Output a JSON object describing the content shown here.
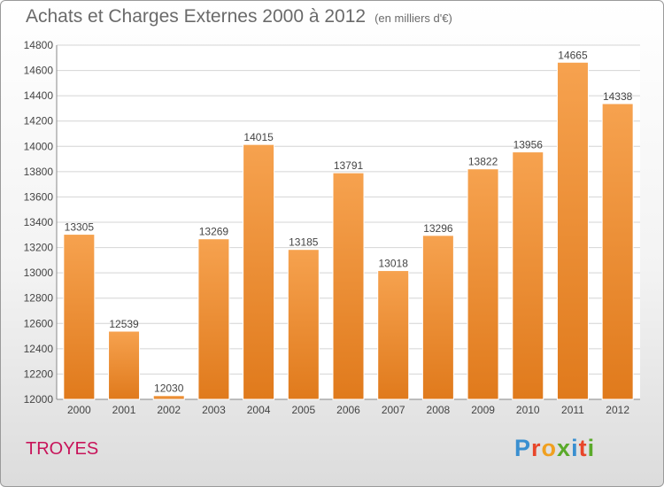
{
  "header": {
    "title": "Achats et Charges Externes 2000 à 2012",
    "subtitle": "(en milliers d'€)"
  },
  "footer": {
    "city": "TROYES",
    "logo_letters": [
      "P",
      "r",
      "o",
      "x",
      "i",
      "t",
      "i"
    ],
    "logo_colors": [
      "#3a8fd0",
      "#e8462a",
      "#f0a020",
      "#5aaa2a",
      "#3a8fd0",
      "#e8462a",
      "#5aaa2a"
    ]
  },
  "colors": {
    "bar_top": "#f6a24f",
    "bar_bottom": "#e07a1c",
    "grid": "#d4d4d4",
    "axis_text": "#444444"
  },
  "chart_data": {
    "type": "bar",
    "categories": [
      "2000",
      "2001",
      "2002",
      "2003",
      "2004",
      "2005",
      "2006",
      "2007",
      "2008",
      "2009",
      "2010",
      "2011",
      "2012"
    ],
    "values": [
      13305,
      12539,
      12030,
      13269,
      14015,
      13185,
      13791,
      13018,
      13296,
      13822,
      13956,
      14665,
      14338
    ],
    "ylim": [
      12000,
      14800
    ],
    "yticks": [
      12000,
      12200,
      12400,
      12600,
      12800,
      13000,
      13200,
      13400,
      13600,
      13800,
      14000,
      14200,
      14400,
      14600,
      14800
    ],
    "grid": true
  }
}
